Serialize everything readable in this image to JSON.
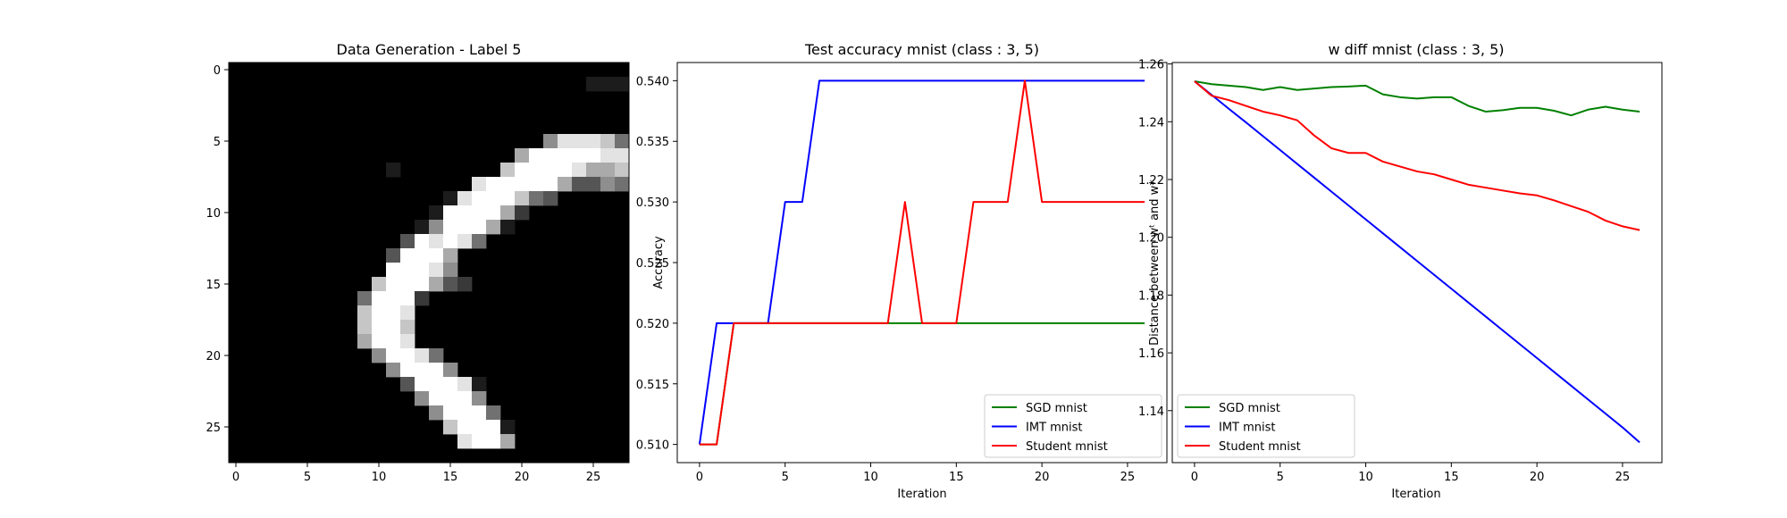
{
  "chart_data": [
    {
      "type": "heatmap",
      "title": "Data Generation - Label 5",
      "xlabel": "",
      "ylabel": "",
      "xlim": [
        -0.5,
        27.5
      ],
      "ylim": [
        27.5,
        -0.5
      ],
      "xticks": [
        "0",
        "5",
        "10",
        "15",
        "20",
        "25"
      ],
      "yticks": [
        "0",
        "5",
        "10",
        "15",
        "20",
        "25"
      ],
      "colormap": "gray",
      "image_rows": [
        "0000000000000000000000000000",
        "0000000000000000000000000111",
        "0000000000000000000000000000",
        "0000000000000000000000000000",
        "0000000000000000000000000000",
        "0000000000000000000000588874",
        "0000000000000000000069999988",
        "0000000000010000000799998667",
        "0000000000000000089999963354",
        "0000000000000001899974300000",
        "0000000000000019999620000000",
        "0000000000000159996100000000",
        "0000000000003989840000000000",
        "0000000000039996000000000000",
        "0000000000099985000000000000",
        "0000000000799963200000000000",
        "0000000004999200000000000000",
        "0000000007998000000000000000",
        "0000000007997000000000000000",
        "0000000006998000000000000000",
        "0000000000599840000000000000",
        "0000000000059995000000000000",
        "0000000000003999810000000000",
        "0000000000000599950000000000",
        "0000000000000059994000000000",
        "0000000000000007999100000000",
        "0000000000000000899600000000",
        "0000000000000000000000000000"
      ]
    },
    {
      "type": "line",
      "title": "Test accuracy mnist (class : 3, 5)",
      "xlabel": "Iteration",
      "ylabel": "Accuracy",
      "xlim": [
        -1.3,
        27.3
      ],
      "ylim": [
        0.5085,
        0.5415
      ],
      "xticks": [
        "0",
        "5",
        "10",
        "15",
        "20",
        "25"
      ],
      "yticks": [
        "0.510",
        "0.515",
        "0.520",
        "0.525",
        "0.530",
        "0.535",
        "0.540"
      ],
      "legend": "lower-right",
      "x": [
        0,
        1,
        2,
        3,
        4,
        5,
        6,
        7,
        8,
        9,
        10,
        11,
        12,
        13,
        14,
        15,
        16,
        17,
        18,
        19,
        20,
        21,
        22,
        23,
        24,
        25,
        26
      ],
      "series": [
        {
          "name": "SGD mnist",
          "color": "#008000",
          "values": [
            0.51,
            0.51,
            0.52,
            0.52,
            0.52,
            0.52,
            0.52,
            0.52,
            0.52,
            0.52,
            0.52,
            0.52,
            0.52,
            0.52,
            0.52,
            0.52,
            0.52,
            0.52,
            0.52,
            0.52,
            0.52,
            0.52,
            0.52,
            0.52,
            0.52,
            0.52,
            0.52
          ]
        },
        {
          "name": "IMT mnist",
          "color": "#0000ff",
          "values": [
            0.51,
            0.52,
            0.52,
            0.52,
            0.52,
            0.53,
            0.53,
            0.54,
            0.54,
            0.54,
            0.54,
            0.54,
            0.54,
            0.54,
            0.54,
            0.54,
            0.54,
            0.54,
            0.54,
            0.54,
            0.54,
            0.54,
            0.54,
            0.54,
            0.54,
            0.54,
            0.54
          ]
        },
        {
          "name": "Student mnist",
          "color": "#ff0000",
          "values": [
            0.51,
            0.51,
            0.52,
            0.52,
            0.52,
            0.52,
            0.52,
            0.52,
            0.52,
            0.52,
            0.52,
            0.52,
            0.53,
            0.52,
            0.52,
            0.52,
            0.53,
            0.53,
            0.53,
            0.54,
            0.53,
            0.53,
            0.53,
            0.53,
            0.53,
            0.53,
            0.53
          ]
        }
      ]
    },
    {
      "type": "line",
      "title": "w diff mnist (class : 3, 5)",
      "xlabel": "Iteration",
      "ylabel": "Distance between wᵗ and w*",
      "xlim": [
        -1.3,
        27.3
      ],
      "ylim": [
        1.122,
        1.2605
      ],
      "xticks": [
        "0",
        "5",
        "10",
        "15",
        "20",
        "25"
      ],
      "yticks": [
        "1.14",
        "1.16",
        "1.18",
        "1.20",
        "1.22",
        "1.24",
        "1.26"
      ],
      "legend": "lower-left",
      "x": [
        0,
        1,
        2,
        3,
        4,
        5,
        6,
        7,
        8,
        9,
        10,
        11,
        12,
        13,
        14,
        15,
        16,
        17,
        18,
        19,
        20,
        21,
        22,
        23,
        24,
        25,
        26
      ],
      "series": [
        {
          "name": "SGD mnist",
          "color": "#008000",
          "values": [
            1.254,
            1.253,
            1.2525,
            1.252,
            1.251,
            1.252,
            1.251,
            1.2515,
            1.252,
            1.2522,
            1.2525,
            1.2495,
            1.2485,
            1.248,
            1.2485,
            1.2485,
            1.2455,
            1.2435,
            1.244,
            1.2448,
            1.2448,
            1.2438,
            1.2422,
            1.2442,
            1.2452,
            1.2442,
            1.2435
          ]
        },
        {
          "name": "IMT mnist",
          "color": "#0000ff",
          "values": [
            1.254,
            1.2493,
            1.2445,
            1.2398,
            1.235,
            1.2302,
            1.2254,
            1.2206,
            1.2158,
            1.211,
            1.2062,
            1.2014,
            1.1966,
            1.1918,
            1.187,
            1.1822,
            1.1774,
            1.1726,
            1.1678,
            1.163,
            1.1582,
            1.1534,
            1.1486,
            1.1438,
            1.139,
            1.1342,
            1.129
          ]
        },
        {
          "name": "Student mnist",
          "color": "#ff0000",
          "values": [
            1.254,
            1.249,
            1.2475,
            1.2455,
            1.2435,
            1.2422,
            1.2405,
            1.2352,
            1.2308,
            1.2292,
            1.2292,
            1.2262,
            1.2245,
            1.2228,
            1.2218,
            1.22,
            1.2182,
            1.2172,
            1.2162,
            1.2152,
            1.2145,
            1.2128,
            1.2108,
            1.2088,
            1.2058,
            1.2038,
            1.2025
          ]
        }
      ]
    }
  ]
}
